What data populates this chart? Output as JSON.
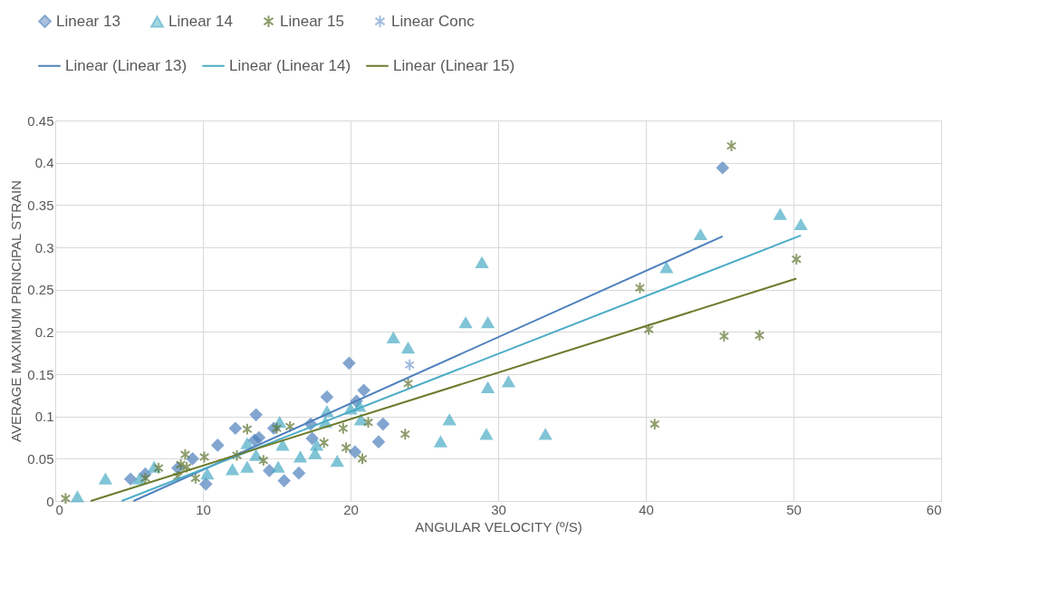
{
  "chart_data": {
    "type": "scatter",
    "xlabel": "ANGULAR VELOCITY (º/S)",
    "ylabel": "AVERAGE MAXIMUM PRINCIPAL STRAIN",
    "xlim": [
      0,
      60
    ],
    "xticks": [
      0,
      10,
      20,
      30,
      40,
      50,
      60
    ],
    "ylim": [
      0,
      0.45
    ],
    "yticks": [
      {
        "value": 0,
        "label": "0"
      },
      0.05,
      {
        "value": 0.1,
        "label": "0.1"
      },
      0.15,
      {
        "value": 0.2,
        "label": "0.2"
      },
      0.25,
      {
        "value": 0.3,
        "label": "0.3"
      },
      0.35,
      {
        "value": 0.4,
        "label": "0.4"
      },
      0.45
    ],
    "grid": true,
    "legend": "top",
    "series": [
      {
        "name": "Linear 13",
        "type": "scatter",
        "marker": "diamond",
        "color": "#4f81bd",
        "x": [
          5.1,
          6.1,
          8.3,
          9.3,
          10.2,
          11.0,
          12.2,
          13.6,
          13.5,
          14.8,
          13.8,
          14.5,
          15.5,
          16.5,
          17.3,
          17.4,
          18.4,
          19.9,
          20.9,
          20.3,
          20.4,
          22.2,
          21.9,
          45.2
        ],
        "values": [
          0.026,
          0.032,
          0.039,
          0.05,
          0.02,
          0.066,
          0.086,
          0.102,
          0.072,
          0.086,
          0.075,
          0.036,
          0.024,
          0.033,
          0.091,
          0.074,
          0.123,
          0.163,
          0.131,
          0.058,
          0.118,
          0.091,
          0.07,
          0.394
        ]
      },
      {
        "name": "Linear 14",
        "type": "scatter",
        "marker": "triangle",
        "color": "#4bacc6",
        "x": [
          1.5,
          3.4,
          5.7,
          6.7,
          10.3,
          12.0,
          13.0,
          13.0,
          13.6,
          15.2,
          15.1,
          15.4,
          16.6,
          17.6,
          17.7,
          19.1,
          18.4,
          18.3,
          20.0,
          20.6,
          20.7,
          23.9,
          28.9,
          27.8,
          29.3,
          22.9,
          29.3,
          30.7,
          26.7,
          29.2,
          33.2,
          26.1,
          43.7,
          41.4,
          49.1,
          50.5
        ],
        "values": [
          0.005,
          0.026,
          0.026,
          0.04,
          0.032,
          0.037,
          0.04,
          0.068,
          0.054,
          0.093,
          0.04,
          0.066,
          0.052,
          0.056,
          0.066,
          0.047,
          0.106,
          0.093,
          0.109,
          0.112,
          0.096,
          0.181,
          0.282,
          0.211,
          0.211,
          0.193,
          0.134,
          0.141,
          0.096,
          0.079,
          0.079,
          0.07,
          0.315,
          0.276,
          0.339,
          0.327
        ]
      },
      {
        "name": "Linear 15",
        "type": "scatter",
        "marker": "cross",
        "color": "#5f7530",
        "x": [
          0.7,
          6.1,
          7.0,
          8.8,
          8.5,
          8.3,
          9.5,
          10.1,
          8.9,
          12.3,
          13.0,
          14.1,
          15.0,
          15.9,
          18.2,
          19.5,
          19.7,
          21.2,
          20.8,
          23.7,
          23.9,
          45.8,
          39.6,
          40.2,
          45.3,
          47.7,
          50.2,
          40.6
        ],
        "values": [
          0.003,
          0.027,
          0.039,
          0.055,
          0.043,
          0.029,
          0.027,
          0.052,
          0.04,
          0.054,
          0.085,
          0.048,
          0.086,
          0.088,
          0.069,
          0.086,
          0.063,
          0.093,
          0.05,
          0.079,
          0.139,
          0.42,
          0.252,
          0.203,
          0.195,
          0.196,
          0.286,
          0.091
        ]
      },
      {
        "name": "Linear Conc",
        "type": "scatter",
        "marker": "cross",
        "color": "#7ba0d4",
        "x": [
          24.0
        ],
        "values": [
          0.161
        ]
      },
      {
        "name": "Linear (Linear 13)",
        "type": "line",
        "color": "#4f81bd",
        "x": [
          5.3,
          45.2
        ],
        "values": [
          0,
          0.313
        ]
      },
      {
        "name": "Linear (Linear 14)",
        "type": "line",
        "color": "#4bacc6",
        "x": [
          4.5,
          50.5
        ],
        "values": [
          0,
          0.314
        ]
      },
      {
        "name": "Linear (Linear 15)",
        "type": "line",
        "color": "#6b7b2c",
        "x": [
          2.4,
          50.2
        ],
        "values": [
          0,
          0.263
        ]
      }
    ]
  }
}
